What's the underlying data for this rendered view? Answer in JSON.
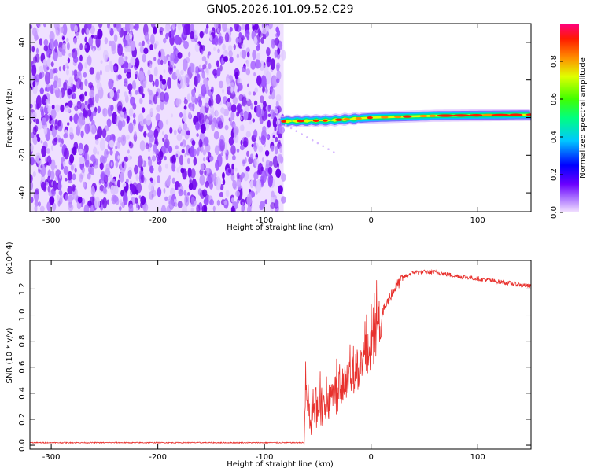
{
  "figure_title": "GN05.2026.101.09.52.C29",
  "chart_data": [
    {
      "type": "heatmap",
      "title": "",
      "xlabel": "Height of straight line (km)",
      "ylabel": "Frequency (Hz)",
      "xlim": [
        -320,
        150
      ],
      "ylim": [
        -50,
        50
      ],
      "x_ticks": [
        -300,
        -200,
        -100,
        0,
        100
      ],
      "y_ticks": [
        -40,
        -20,
        0,
        20,
        40
      ],
      "noise_region_x": [
        -320,
        -82
      ],
      "ridge": {
        "x_start": -85,
        "x_end": 150,
        "points": [
          {
            "x": -85,
            "y": -2
          },
          {
            "x": -40,
            "y": -1.5
          },
          {
            "x": 0,
            "y": 0
          },
          {
            "x": 60,
            "y": 1
          },
          {
            "x": 150,
            "y": 1.5
          }
        ]
      },
      "colorbar": {
        "label": "Normalized spectral amplitude",
        "range": [
          0,
          1
        ],
        "ticks": [
          0.0,
          0.2,
          0.4,
          0.6,
          0.8
        ],
        "colormap": "rainbow (violet-blue-cyan-green-yellow-red-magenta)"
      }
    },
    {
      "type": "line",
      "title": "",
      "xlabel": "Height of straight line (km)",
      "ylabel": "SNR (10 * v/v)",
      "y_multiplier": "(x10^4)",
      "xlim": [
        -320,
        150
      ],
      "ylim": [
        -0.03,
        1.42
      ],
      "x_ticks": [
        -300,
        -200,
        -100,
        0,
        100
      ],
      "y_ticks": [
        0.0,
        0.2,
        0.4,
        0.6,
        0.8,
        1.0,
        1.2
      ],
      "series": [
        {
          "color": "#e8322e",
          "points": [
            {
              "x": -320,
              "y": 0.02
            },
            {
              "x": -100,
              "y": 0.02
            },
            {
              "x": -63,
              "y": 0.02
            },
            {
              "x": -61,
              "y": 0.45
            },
            {
              "x": -58,
              "y": 0.25
            },
            {
              "x": -50,
              "y": 0.3
            },
            {
              "x": -40,
              "y": 0.35
            },
            {
              "x": -30,
              "y": 0.45
            },
            {
              "x": -20,
              "y": 0.55
            },
            {
              "x": -10,
              "y": 0.6
            },
            {
              "x": 0,
              "y": 0.75
            },
            {
              "x": 10,
              "y": 1.0
            },
            {
              "x": 20,
              "y": 1.18
            },
            {
              "x": 30,
              "y": 1.29
            },
            {
              "x": 40,
              "y": 1.33
            },
            {
              "x": 60,
              "y": 1.33
            },
            {
              "x": 80,
              "y": 1.3
            },
            {
              "x": 100,
              "y": 1.28
            },
            {
              "x": 125,
              "y": 1.25
            },
            {
              "x": 150,
              "y": 1.22
            }
          ]
        }
      ]
    }
  ]
}
